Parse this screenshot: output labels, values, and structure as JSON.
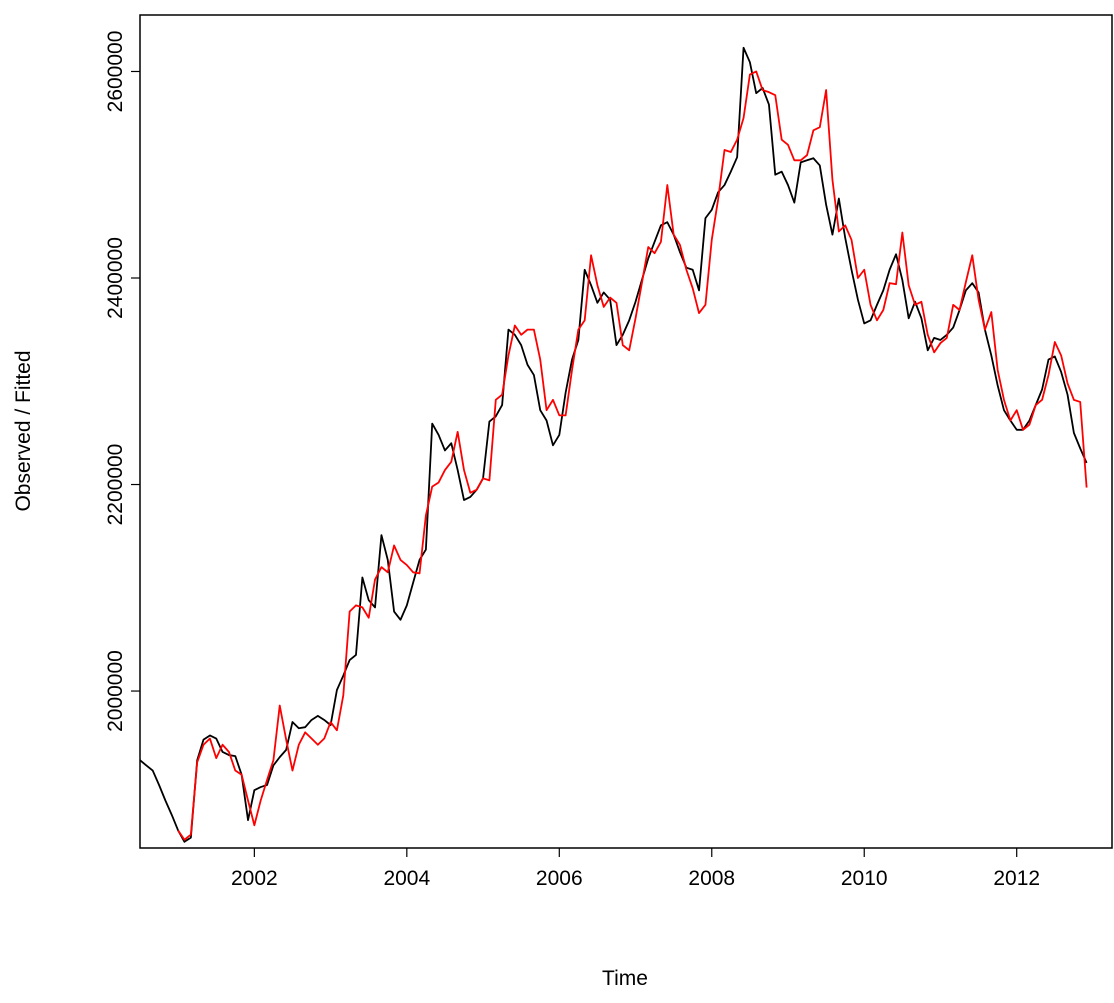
{
  "chart_data": {
    "type": "line",
    "x_label": "Time",
    "y_label": "Observed / Fitted",
    "x": [
      2000.5,
      2000.583,
      2000.667,
      2000.75,
      2000.833,
      2000.917,
      2001,
      2001.083,
      2001.167,
      2001.25,
      2001.333,
      2001.417,
      2001.5,
      2001.583,
      2001.667,
      2001.75,
      2001.833,
      2001.917,
      2002,
      2002.083,
      2002.167,
      2002.25,
      2002.333,
      2002.417,
      2002.5,
      2002.583,
      2002.667,
      2002.75,
      2002.833,
      2002.917,
      2003,
      2003.083,
      2003.167,
      2003.25,
      2003.333,
      2003.417,
      2003.5,
      2003.583,
      2003.667,
      2003.75,
      2003.833,
      2003.917,
      2004,
      2004.083,
      2004.167,
      2004.25,
      2004.333,
      2004.417,
      2004.5,
      2004.583,
      2004.667,
      2004.75,
      2004.833,
      2004.917,
      2005,
      2005.083,
      2005.167,
      2005.25,
      2005.333,
      2005.417,
      2005.5,
      2005.583,
      2005.667,
      2005.75,
      2005.833,
      2005.917,
      2006,
      2006.083,
      2006.167,
      2006.25,
      2006.333,
      2006.417,
      2006.5,
      2006.583,
      2006.667,
      2006.75,
      2006.833,
      2006.917,
      2007,
      2007.083,
      2007.167,
      2007.25,
      2007.333,
      2007.417,
      2007.5,
      2007.583,
      2007.667,
      2007.75,
      2007.833,
      2007.917,
      2008,
      2008.083,
      2008.167,
      2008.25,
      2008.333,
      2008.417,
      2008.5,
      2008.583,
      2008.667,
      2008.75,
      2008.833,
      2008.917,
      2009,
      2009.083,
      2009.167,
      2009.25,
      2009.333,
      2009.417,
      2009.5,
      2009.583,
      2009.667,
      2009.75,
      2009.833,
      2009.917,
      2010,
      2010.083,
      2010.167,
      2010.25,
      2010.333,
      2010.417,
      2010.5,
      2010.583,
      2010.667,
      2010.75,
      2010.833,
      2010.917,
      2011,
      2011.083,
      2011.167,
      2011.25,
      2011.333,
      2011.417,
      2011.5,
      2011.583,
      2011.667,
      2011.75,
      2011.833,
      2011.917,
      2012,
      2012.083,
      2012.167,
      2012.25,
      2012.333,
      2012.417,
      2012.5,
      2012.583,
      2012.667,
      2012.75,
      2012.833,
      2012.917
    ],
    "series": [
      {
        "color": "#000000",
        "values": [
          1933000,
          1928000,
          1923000,
          1909000,
          1894000,
          1880000,
          1865000,
          1854000,
          1858000,
          1933000,
          1953000,
          1957000,
          1954000,
          1941000,
          1938000,
          1937000,
          1919000,
          1875000,
          1904000,
          1907000,
          1909000,
          1928000,
          1936000,
          1943000,
          1970000,
          1964000,
          1965000,
          1972000,
          1976000,
          1972000,
          1967000,
          2001000,
          2015000,
          2030000,
          2035000,
          2110000,
          2088000,
          2081000,
          2151000,
          2127000,
          2077000,
          2069000,
          2083000,
          2105000,
          2127000,
          2137000,
          2259000,
          2248000,
          2233000,
          2240000,
          2214000,
          2185000,
          2188000,
          2195000,
          2206000,
          2261000,
          2266000,
          2277000,
          2350000,
          2345000,
          2335000,
          2316000,
          2306000,
          2272000,
          2262000,
          2238000,
          2248000,
          2289000,
          2321000,
          2340000,
          2408000,
          2393000,
          2376000,
          2386000,
          2379000,
          2335000,
          2345000,
          2359000,
          2377000,
          2398000,
          2419000,
          2435000,
          2451000,
          2454000,
          2442000,
          2425000,
          2410000,
          2408000,
          2388000,
          2458000,
          2466000,
          2483000,
          2490000,
          2503000,
          2517000,
          2623000,
          2609000,
          2579000,
          2584000,
          2568000,
          2500000,
          2503000,
          2490000,
          2473000,
          2512000,
          2514000,
          2516000,
          2509000,
          2471000,
          2442000,
          2477000,
          2439000,
          2408000,
          2379000,
          2356000,
          2359000,
          2374000,
          2388000,
          2408000,
          2423000,
          2398000,
          2361000,
          2377000,
          2361000,
          2330000,
          2342000,
          2340000,
          2345000,
          2352000,
          2369000,
          2388000,
          2395000,
          2386000,
          2350000,
          2325000,
          2296000,
          2272000,
          2262000,
          2253000,
          2253000,
          2262000,
          2277000,
          2292000,
          2321000,
          2324000,
          2309000,
          2287000,
          2250000,
          2235000,
          2221000
        ]
      },
      {
        "color": "#ff0000",
        "values": [
          null,
          null,
          null,
          null,
          null,
          null,
          1865000,
          1856000,
          1861000,
          1931000,
          1948000,
          1954000,
          1935000,
          1948000,
          1941000,
          1923000,
          1919000,
          1894000,
          1870000,
          1894000,
          1914000,
          1933000,
          1986000,
          1953000,
          1923000,
          1948000,
          1960000,
          1954000,
          1948000,
          1954000,
          1970000,
          1962000,
          1996000,
          2077000,
          2083000,
          2081000,
          2071000,
          2108000,
          2120000,
          2115000,
          2141000,
          2127000,
          2122000,
          2115000,
          2114000,
          2170000,
          2198000,
          2202000,
          2214000,
          2222000,
          2251000,
          2214000,
          2192000,
          2195000,
          2206000,
          2204000,
          2282000,
          2287000,
          2325000,
          2354000,
          2345000,
          2350000,
          2350000,
          2321000,
          2272000,
          2282000,
          2267000,
          2267000,
          2311000,
          2350000,
          2359000,
          2422000,
          2393000,
          2372000,
          2381000,
          2376000,
          2335000,
          2330000,
          2361000,
          2395000,
          2430000,
          2424000,
          2435000,
          2490000,
          2442000,
          2432000,
          2408000,
          2390000,
          2366000,
          2374000,
          2437000,
          2476000,
          2524000,
          2522000,
          2534000,
          2555000,
          2597000,
          2600000,
          2582000,
          2580000,
          2577000,
          2534000,
          2529000,
          2514000,
          2514000,
          2519000,
          2543000,
          2546000,
          2582000,
          2495000,
          2445000,
          2451000,
          2437000,
          2400000,
          2408000,
          2374000,
          2359000,
          2369000,
          2395000,
          2394000,
          2444000,
          2393000,
          2374000,
          2377000,
          2345000,
          2328000,
          2337000,
          2342000,
          2374000,
          2369000,
          2396000,
          2422000,
          2379000,
          2350000,
          2367000,
          2311000,
          2282000,
          2262000,
          2272000,
          2253000,
          2258000,
          2277000,
          2282000,
          2306000,
          2338000,
          2325000,
          2298000,
          2282000,
          2280000,
          2197000
        ]
      }
    ],
    "xlim": [
      2000.5,
      2013.25
    ],
    "xticks": [
      2002,
      2004,
      2006,
      2008,
      2010,
      2012
    ],
    "ylim": [
      1848000,
      2654700
    ],
    "yticks": [
      2000000,
      2200000,
      2400000,
      2600000
    ],
    "grid": false
  }
}
